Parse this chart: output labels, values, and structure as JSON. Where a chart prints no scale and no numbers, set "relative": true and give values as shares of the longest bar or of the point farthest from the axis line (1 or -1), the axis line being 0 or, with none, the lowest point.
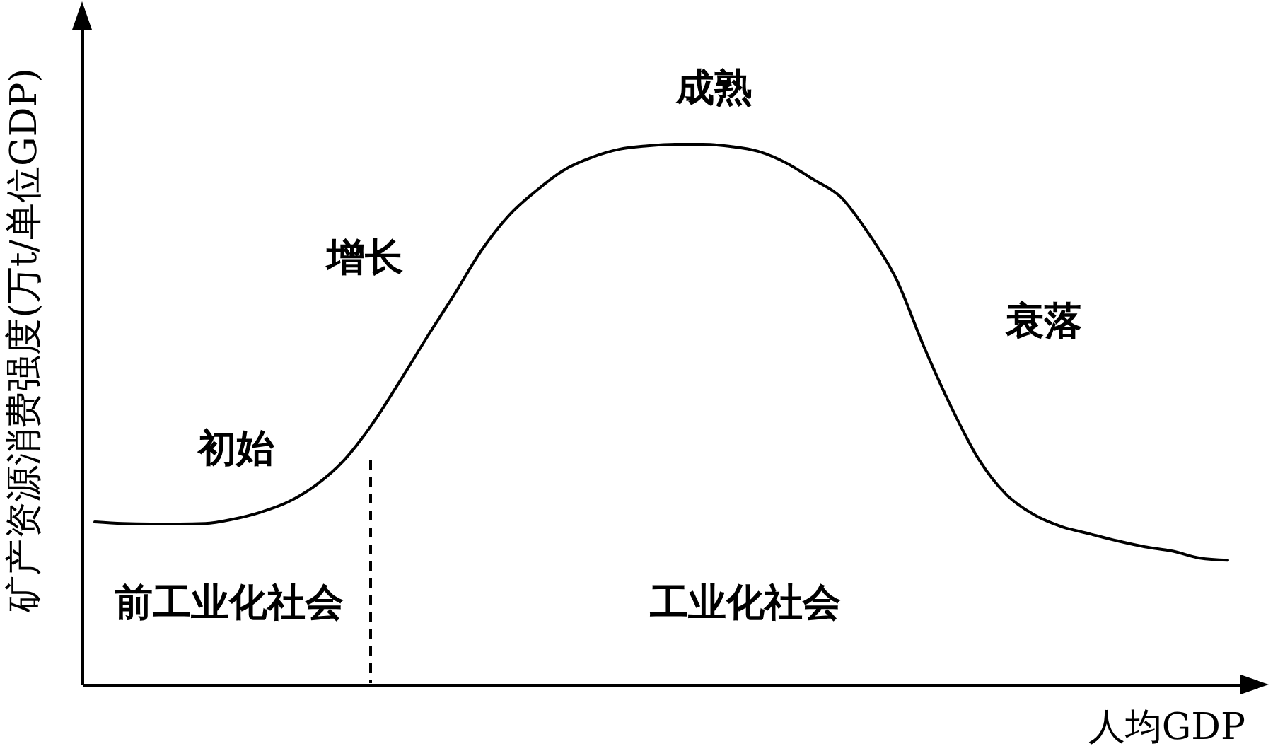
{
  "chart_data": {
    "type": "line",
    "relative": true,
    "xlabel": "人均GDP",
    "ylabel": "矿产资源消费强度(万t/单位GDP)",
    "categories": [
      null,
      null,
      null,
      null,
      null,
      null,
      null,
      null,
      null,
      null,
      null,
      null,
      null,
      null,
      null,
      null,
      null,
      null,
      null,
      null,
      null,
      null,
      null,
      null,
      null,
      null,
      null,
      null,
      null,
      null,
      null,
      null,
      null,
      null,
      null,
      null,
      null,
      null,
      null,
      null,
      null,
      null
    ],
    "series": [
      {
        "color": "#000000",
        "values": [
          0.301,
          0.298,
          0.297,
          0.297,
          0.298,
          0.306,
          0.319,
          0.338,
          0.369,
          0.414,
          0.479,
          0.558,
          0.641,
          0.721,
          0.804,
          0.869,
          0.915,
          0.953,
          0.976,
          0.991,
          0.997,
          1.0,
          1.0,
          0.996,
          0.987,
          0.966,
          0.935,
          0.902,
          0.835,
          0.751,
          0.626,
          0.513,
          0.416,
          0.351,
          0.314,
          0.292,
          0.279,
          0.266,
          0.255,
          0.247,
          0.234,
          0.23
        ]
      }
    ],
    "annotations": [
      "初始",
      "增长",
      "成熟",
      "衰落",
      "前工业化社会",
      "工业化社会"
    ],
    "tick_labels": false,
    "line_style": "solid"
  }
}
